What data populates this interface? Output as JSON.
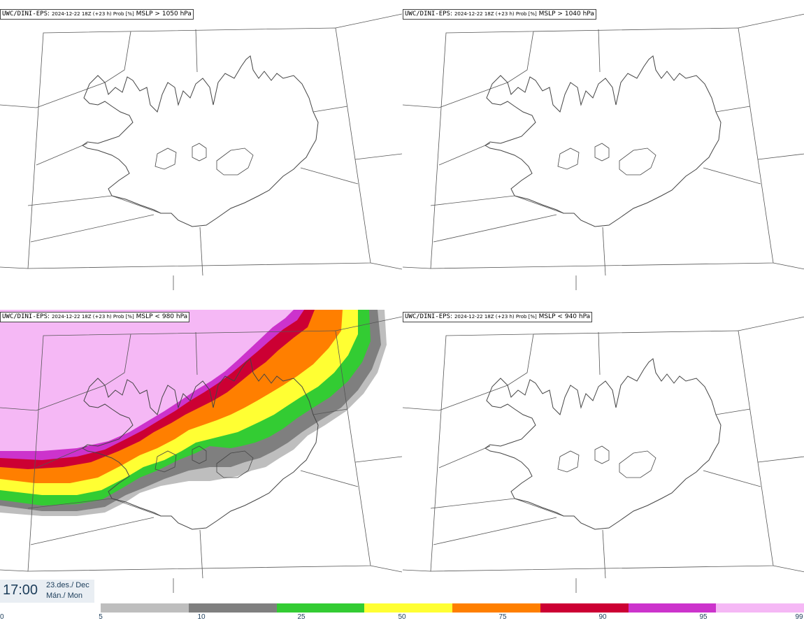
{
  "panels": [
    {
      "id": "p1050",
      "model": "UWC/DINI-EPS",
      "meta": "2024-12-22 18Z (+23 h) Prob [%]",
      "param": "MSLP > 1050 hPa"
    },
    {
      "id": "p1040",
      "model": "UWC/DINI-EPS",
      "meta": "2024-12-22 18Z (+23 h) Prob [%]",
      "param": "MSLP > 1040 hPa"
    },
    {
      "id": "p980",
      "model": "UWC/DINI-EPS",
      "meta": "2024-12-22 18Z (+23 h) Prob [%]",
      "param": "MSLP < 980 hPa"
    },
    {
      "id": "p940",
      "model": "UWC/DINI-EPS",
      "meta": "2024-12-22 18Z (+23 h) Prob [%]",
      "param": "MSLP < 940 hPa"
    }
  ],
  "valid_time": {
    "time": "17:00",
    "date": "23.des./ Dec",
    "day": "Mán./ Mon"
  },
  "colorbar": {
    "ticks": [
      "0",
      "5",
      "10",
      "25",
      "50",
      "75",
      "90",
      "95",
      "99"
    ],
    "colors": [
      "#bebebe",
      "#7f7f7f",
      "#33cc33",
      "#ffff33",
      "#ff7f00",
      "#cc0033",
      "#cc33cc",
      "#f5b8f5"
    ]
  },
  "colors": {
    "land_outline": "#444444",
    "grid": "#555555"
  }
}
